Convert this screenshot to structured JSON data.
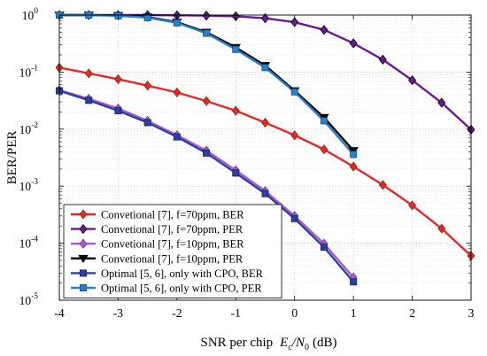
{
  "chart_data": {
    "type": "line",
    "xlabel_main": "SNR per chip",
    "xlabel_E": "E",
    "xlabel_E_sub": "c",
    "xlabel_N": "/N",
    "xlabel_N_sub": "0",
    "xlabel_unit": "(dB)",
    "ylabel": "BER/PER",
    "xlim": [
      -4,
      3
    ],
    "ylog": true,
    "ylim": [
      1e-05,
      1
    ],
    "grid": true,
    "legend_position": "bottom-left",
    "x_ticks": [
      {
        "v": -4,
        "label": "-4"
      },
      {
        "v": -3,
        "label": "-3"
      },
      {
        "v": -2,
        "label": "-2"
      },
      {
        "v": -1,
        "label": "-1"
      },
      {
        "v": 0,
        "label": "0"
      },
      {
        "v": 1,
        "label": "1"
      },
      {
        "v": 2,
        "label": "2"
      },
      {
        "v": 3,
        "label": "3"
      }
    ],
    "y_ticks": [
      {
        "v": 1,
        "base": "10",
        "exp": "0"
      },
      {
        "v": 0.1,
        "base": "10",
        "exp": "-1"
      },
      {
        "v": 0.01,
        "base": "10",
        "exp": "-2"
      },
      {
        "v": 0.001,
        "base": "10",
        "exp": "-3"
      },
      {
        "v": 0.0001,
        "base": "10",
        "exp": "-4"
      },
      {
        "v": 1e-05,
        "base": "10",
        "exp": "-5"
      }
    ],
    "series": [
      {
        "name": "Convetional [7], f=70ppm, BER",
        "color": "#e8262b",
        "marker": "diamond",
        "x": [
          -4,
          -3.5,
          -3,
          -2.5,
          -2,
          -1.5,
          -1,
          -0.5,
          0,
          0.5,
          1,
          1.5,
          2,
          2.5,
          3
        ],
        "y": [
          0.12,
          0.095,
          0.075,
          0.058,
          0.044,
          0.031,
          0.021,
          0.013,
          0.0078,
          0.0044,
          0.0022,
          0.00105,
          0.00046,
          0.00018,
          6e-05
        ]
      },
      {
        "name": "Convetional [7], f=70ppm, PER",
        "color": "#6a1b8f",
        "marker": "diamond",
        "x": [
          -4,
          -3.5,
          -3,
          -2.5,
          -2,
          -1.5,
          -1,
          -0.5,
          0,
          0.5,
          1,
          1.5,
          2,
          2.5,
          3
        ],
        "y": [
          1.0,
          1.0,
          1.0,
          1.0,
          0.99,
          0.98,
          0.95,
          0.88,
          0.75,
          0.55,
          0.32,
          0.165,
          0.072,
          0.029,
          0.0098
        ]
      },
      {
        "name": "Convetional [7], f=10ppm, BER",
        "color": "#a95ad0",
        "marker": "diamond",
        "x": [
          -4,
          -3.5,
          -3,
          -2.5,
          -2,
          -1.5,
          -1,
          -0.5,
          0,
          0.5,
          1
        ],
        "y": [
          0.048,
          0.034,
          0.023,
          0.014,
          0.0078,
          0.0042,
          0.0019,
          0.00082,
          0.0003,
          9.8e-05,
          2.5e-05
        ]
      },
      {
        "name": "Convetional [7], f=10ppm, PER",
        "color": "#000000",
        "marker": "triangle-down",
        "x": [
          -4,
          -3.5,
          -3,
          -2.5,
          -2,
          -1.5,
          -1,
          -0.5,
          0,
          0.5,
          1
        ],
        "y": [
          1.0,
          1.0,
          0.98,
          0.92,
          0.75,
          0.5,
          0.27,
          0.13,
          0.047,
          0.016,
          0.0042
        ]
      },
      {
        "name": "Optimal [5, 6], only with CPO, BER",
        "color": "#2e3f9e",
        "marker": "square",
        "x": [
          -4,
          -3.5,
          -3,
          -2.5,
          -2,
          -1.5,
          -1,
          -0.5,
          0,
          0.5,
          1
        ],
        "y": [
          0.047,
          0.032,
          0.021,
          0.013,
          0.0073,
          0.0038,
          0.0017,
          0.00074,
          0.00027,
          8.5e-05,
          2.1e-05
        ]
      },
      {
        "name": "Optimal [5, 6], only with CPO, PER",
        "color": "#2a7fc9",
        "marker": "square",
        "x": [
          -4,
          -3.5,
          -3,
          -2.5,
          -2,
          -1.5,
          -1,
          -0.5,
          0,
          0.5,
          1
        ],
        "y": [
          1.0,
          1.0,
          0.97,
          0.9,
          0.73,
          0.48,
          0.25,
          0.12,
          0.045,
          0.014,
          0.0036
        ]
      }
    ]
  }
}
